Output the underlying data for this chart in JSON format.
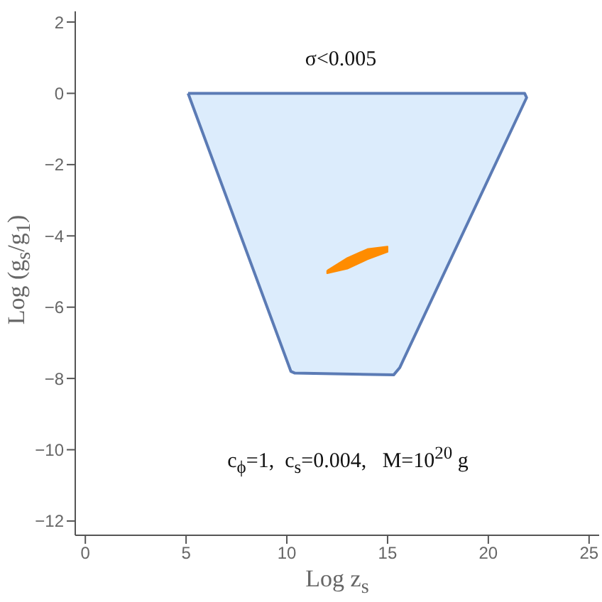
{
  "chart_data": {
    "type": "area",
    "marker": "none",
    "xlabel": "Log z$_{s}$",
    "ylabel": "Log (g$_{s}$/g$_{1}$)",
    "annotations": [
      "σ<0.005",
      "c$_{ϕ}$=1,  c$_{s}$=0.004,   M=10$^{20}$ g"
    ],
    "xlim": [
      -0.5,
      25.5
    ],
    "xticks": [
      0,
      5,
      10,
      15,
      20,
      25
    ],
    "ylim": [
      -12.4,
      2.3
    ],
    "yticks": [
      -12,
      -10,
      -8,
      -6,
      -4,
      -2,
      0,
      2
    ],
    "series": [
      {
        "color": "#5b7bb5",
        "line_style": "solid",
        "x": [
          5.1,
          21.8,
          21.9,
          15.6,
          15.3,
          10.4,
          10.2,
          5.1
        ],
        "values": [
          0,
          0,
          -0.12,
          -7.7,
          -7.9,
          -7.85,
          -7.8,
          0
        ]
      },
      {
        "color": "#ff8c00",
        "x": [
          12,
          13,
          14,
          15,
          15,
          14,
          13,
          12,
          12
        ],
        "values": [
          -4.97,
          -4.62,
          -4.37,
          -4.3,
          -4.45,
          -4.66,
          -4.92,
          -5.05,
          -4.97
        ]
      }
    ]
  }
}
